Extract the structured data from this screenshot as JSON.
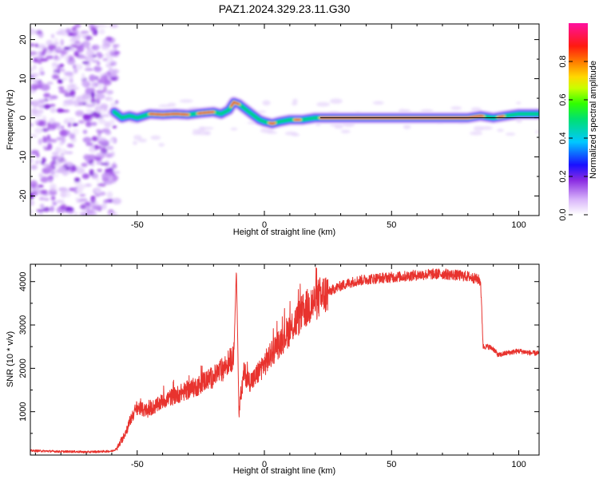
{
  "title": "PAZ1.2024.329.23.11.G30",
  "colors": {
    "snr_line": "#e8332e",
    "ridge_core": "#d9202a",
    "noise": "#8a2be2"
  },
  "chart_data": [
    {
      "type": "heatmap",
      "title": "PAZ1.2024.329.23.11.G30",
      "xlabel": "Height of straight line (km)",
      "ylabel": "Frequency (Hz)",
      "xlim": [
        -92,
        108
      ],
      "ylim": [
        -25,
        24
      ],
      "x_ticks": [
        -50,
        0,
        50,
        100
      ],
      "x_tick_labels": [
        "-50",
        "0",
        "50",
        "100"
      ],
      "y_ticks": [
        -20,
        -10,
        0,
        10,
        20
      ],
      "y_tick_labels": [
        "-20",
        "-10",
        "0",
        "10",
        "20"
      ],
      "colorbar": {
        "label": "Normalized spectral amplitude",
        "range": [
          0,
          1
        ],
        "ticks": [
          0.0,
          0.2,
          0.4,
          0.6,
          0.8
        ],
        "tick_labels": [
          "0.0",
          "0.2",
          "0.4",
          "0.6",
          "0.8"
        ]
      },
      "noise_region_x": [
        -92,
        -58
      ],
      "ridge": {
        "x": [
          -59,
          -56,
          -53,
          -50,
          -45,
          -40,
          -35,
          -30,
          -25,
          -20,
          -17,
          -14,
          -12,
          -10,
          -8,
          -5,
          -2,
          0,
          3,
          6,
          10,
          15,
          20,
          30,
          40,
          50,
          60,
          70,
          80,
          85,
          90,
          95,
          100,
          108
        ],
        "y": [
          1.5,
          0,
          0.5,
          0,
          1,
          0.8,
          1,
          0.8,
          1.2,
          1.5,
          1,
          2,
          4,
          3.5,
          2.5,
          1,
          -0.5,
          -1,
          -1.5,
          -1,
          -0.5,
          -0.5,
          0,
          0,
          0,
          0,
          0,
          0,
          0,
          0.5,
          0,
          0.5,
          1,
          1
        ]
      }
    },
    {
      "type": "line",
      "xlabel": "Height of straight line (km)",
      "ylabel": "SNR (10 * v/v)",
      "xlim": [
        -92,
        108
      ],
      "ylim": [
        0,
        4400
      ],
      "x_ticks": [
        -50,
        0,
        50,
        100
      ],
      "x_tick_labels": [
        "-50",
        "0",
        "50",
        "100"
      ],
      "y_ticks": [
        1000,
        2000,
        3000,
        4000
      ],
      "y_tick_labels": [
        "1000",
        "2000",
        "3000",
        "4000"
      ],
      "series": [
        {
          "x": [
            -92,
            -85,
            -80,
            -75,
            -70,
            -65,
            -60,
            -58,
            -56,
            -54,
            -52,
            -50,
            -48,
            -46,
            -44,
            -42,
            -40,
            -38,
            -36,
            -34,
            -32,
            -30,
            -28,
            -26,
            -24,
            -22,
            -20,
            -18,
            -16,
            -14,
            -12,
            -11,
            -10,
            -8,
            -6,
            -4,
            -2,
            0,
            2,
            4,
            6,
            8,
            10,
            12,
            14,
            16,
            18,
            20,
            22,
            25,
            28,
            30,
            35,
            40,
            45,
            50,
            55,
            60,
            65,
            70,
            75,
            80,
            84,
            85,
            86,
            88,
            90,
            92,
            95,
            100,
            105,
            108
          ],
          "y": [
            100,
            90,
            80,
            80,
            70,
            80,
            90,
            150,
            350,
            600,
            900,
            1100,
            1050,
            1000,
            1100,
            1150,
            1250,
            1300,
            1350,
            1400,
            1450,
            1500,
            1550,
            1600,
            1700,
            1750,
            1800,
            1900,
            2000,
            2150,
            2300,
            4300,
            1000,
            1900,
            1700,
            1750,
            1950,
            2100,
            2250,
            2450,
            2600,
            2750,
            2900,
            3050,
            3200,
            3350,
            3450,
            3550,
            3650,
            3750,
            3850,
            3900,
            4000,
            4050,
            4080,
            4100,
            4120,
            4150,
            4170,
            4180,
            4150,
            4120,
            4050,
            4000,
            2500,
            2500,
            2450,
            2300,
            2350,
            2400,
            2350,
            2350
          ]
        }
      ]
    }
  ]
}
